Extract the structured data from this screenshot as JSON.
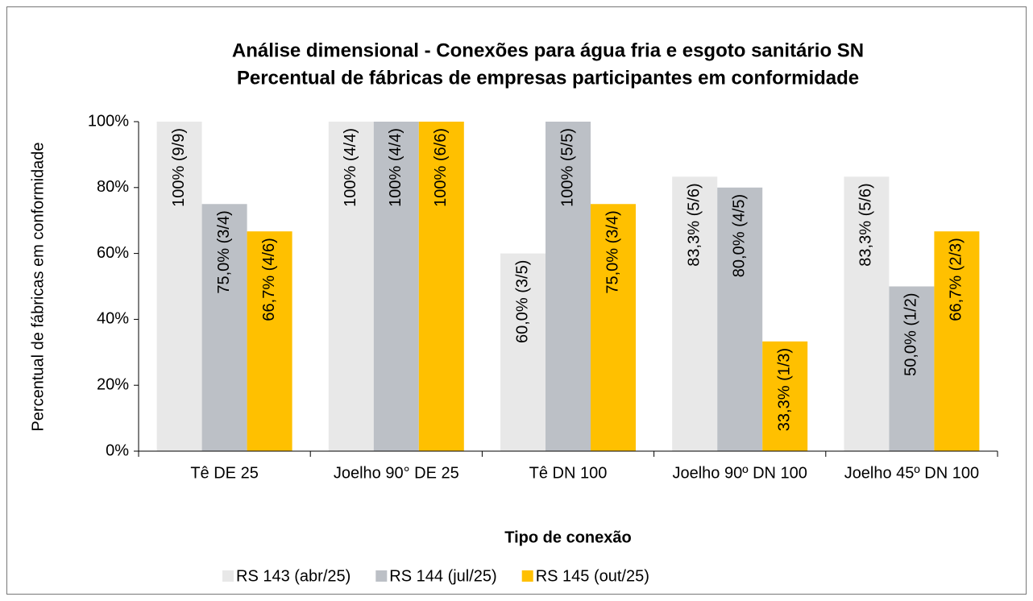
{
  "chart_data": {
    "type": "bar",
    "title": "Análise dimensional - Conexões para água fria e esgoto sanitário SN",
    "subtitle": "Percentual de fábricas de empresas participantes em conformidade",
    "x_label": "Tipo de conexão",
    "y_label": "Percentual de fábricas em conformidade",
    "categories": [
      "Tê DE 25",
      "Joelho 90° DE 25",
      "Tê DN 100",
      "Joelho 90º DN 100",
      "Joelho 45º DN 100"
    ],
    "series": [
      {
        "name": "RS 143 (abr/25)",
        "color": "#e8e8e8",
        "values": [
          100,
          100,
          60,
          83.3,
          83.3
        ],
        "value_labels": [
          "100% (9/9)",
          "100% (4/4)",
          "60,0% (3/5)",
          "83,3% (5/6)",
          "83,3% (5/6)"
        ]
      },
      {
        "name": "RS 144 (jul/25)",
        "color": "#bcc0c6",
        "values": [
          75,
          100,
          100,
          80,
          50
        ],
        "value_labels": [
          "75,0% (3/4)",
          "100% (4/4)",
          "100% (5/5)",
          "80,0% (4/5)",
          "50,0% (1/2)"
        ]
      },
      {
        "name": "RS 145 (out/25)",
        "color": "#ffc000",
        "values": [
          66.7,
          100,
          75,
          33.3,
          66.7
        ],
        "value_labels": [
          "66,7% (4/6)",
          "100% (6/6)",
          "75,0% (3/4)",
          "33,3% (1/3)",
          "66,7% (2/3)"
        ]
      }
    ],
    "ylim": [
      0,
      100
    ],
    "yticks": [
      {
        "value": 0,
        "label": "0%"
      },
      {
        "value": 20,
        "label": "20%"
      },
      {
        "value": 40,
        "label": "40%"
      },
      {
        "value": 60,
        "label": "60%"
      },
      {
        "value": 80,
        "label": "80%"
      },
      {
        "value": 100,
        "label": "100%"
      }
    ],
    "grid": false,
    "legend": "bottom"
  }
}
